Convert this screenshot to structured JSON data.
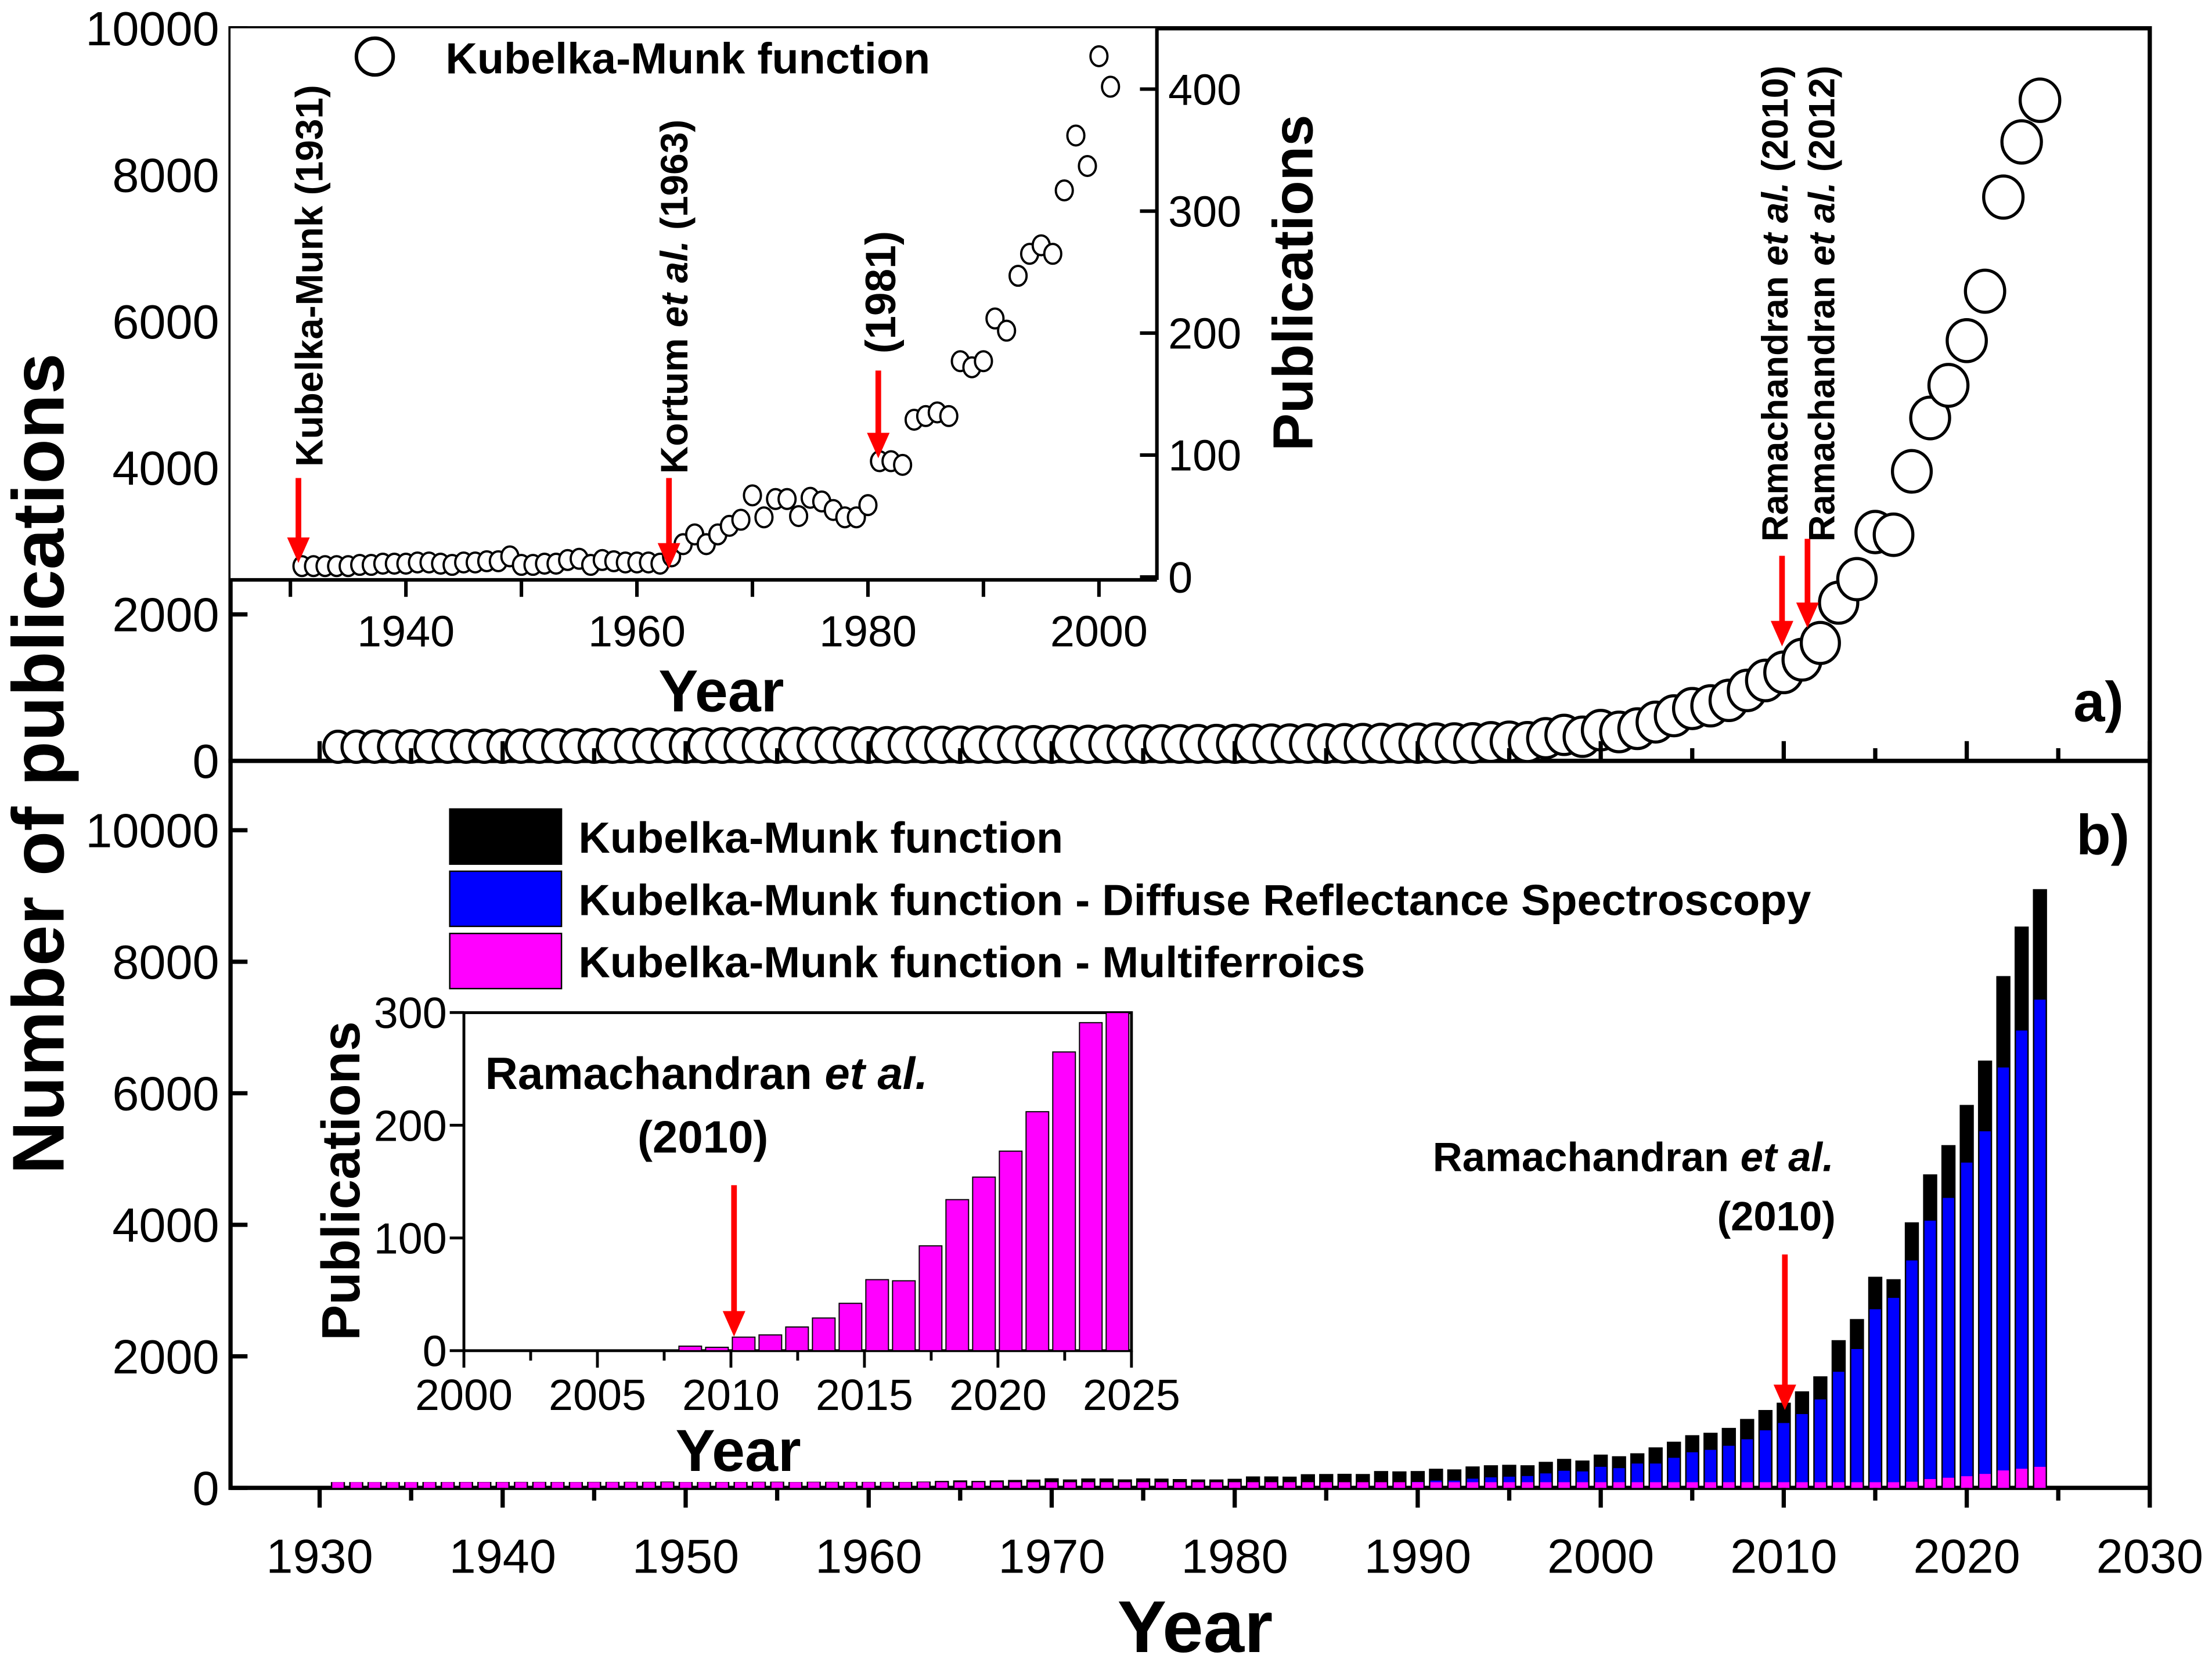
{
  "chart_data": [
    {
      "panel": "a)",
      "type": "scatter",
      "xlabel": "",
      "ylabel": "Number of publications",
      "xlim": [
        1925,
        2030
      ],
      "ylim": [
        0,
        10000
      ],
      "yticks": [
        "0",
        "2000",
        "4000",
        "6000",
        "8000",
        "10000"
      ],
      "legend": [
        "Kubelka-Munk function"
      ],
      "legend_placement": "top-left",
      "marker": "open-circle",
      "x_start": 1931,
      "series": [
        {
          "name": "Kubelka-Munk function",
          "years": [
            1931,
            1932,
            1933,
            1934,
            1935,
            1936,
            1937,
            1938,
            1939,
            1940,
            1941,
            1942,
            1943,
            1944,
            1945,
            1946,
            1947,
            1948,
            1949,
            1950,
            1951,
            1952,
            1953,
            1954,
            1955,
            1956,
            1957,
            1958,
            1959,
            1960,
            1961,
            1962,
            1963,
            1964,
            1965,
            1966,
            1967,
            1968,
            1969,
            1970,
            1971,
            1972,
            1973,
            1974,
            1975,
            1976,
            1977,
            1978,
            1979,
            1980,
            1981,
            1982,
            1983,
            1984,
            1985,
            1986,
            1987,
            1988,
            1989,
            1990,
            1991,
            1992,
            1993,
            1994,
            1995,
            1996,
            1997,
            1998,
            1999,
            2000,
            2001,
            2002,
            2003,
            2004,
            2005,
            2006,
            2007,
            2008,
            2009,
            2010,
            2011,
            2012,
            2013,
            2014,
            2015,
            2016,
            2017,
            2018,
            2019,
            2020,
            2021,
            2022,
            2023,
            2024
          ],
          "values": [
            2,
            2,
            2,
            2,
            2,
            3,
            3,
            4,
            4,
            4,
            5,
            5,
            4,
            3,
            5,
            5,
            6,
            6,
            10,
            3,
            3,
            4,
            4,
            7,
            8,
            3,
            7,
            6,
            5,
            5,
            5,
            4,
            10,
            20,
            28,
            20,
            28,
            35,
            40,
            60,
            42,
            57,
            57,
            43,
            58,
            55,
            48,
            42,
            42,
            52,
            88,
            88,
            85,
            122,
            125,
            128,
            125,
            170,
            165,
            170,
            205,
            195,
            240,
            258,
            265,
            258,
            310,
            355,
            330,
            420,
            395,
            440,
            530,
            616,
            715,
            752,
            826,
            962,
            1098,
            1209,
            1382,
            1610,
            2160,
            2481,
            3124,
            3087,
            3952,
            4681,
            5126,
            5737,
            6411,
            7696,
            8449,
            9018
          ]
        }
      ],
      "annotations": [
        {
          "text": "Kubelka-Munk (1931)",
          "year": 1931
        },
        {
          "text_pre": "Ramachandran ",
          "text_it": "et al.",
          "text_post": " (2010)",
          "year": 2010
        },
        {
          "text_pre": "Ramachandran ",
          "text_it": "et al.",
          "text_post": " (2012)",
          "year": 2012
        }
      ],
      "inset": {
        "type": "scatter",
        "xlabel": "Year",
        "ylabel": "Publications",
        "xlim": [
          1925,
          2005
        ],
        "ylim": [
          0,
          450
        ],
        "xticks": [
          "1940",
          "1960",
          "1980",
          "2000"
        ],
        "yticks": [
          "0",
          "100",
          "200",
          "300",
          "400"
        ],
        "year_range": [
          1931,
          2001
        ],
        "annotations": [
          {
            "text": "Kubelka-Munk (1931)",
            "year": 1931
          },
          {
            "text_pre": "Kortum ",
            "text_it": "et al.",
            "text_post": " (1963)",
            "year": 1963
          },
          {
            "text": "(1981)",
            "year": 1981
          }
        ]
      }
    },
    {
      "panel": "b)",
      "type": "bar",
      "xlabel": "Year",
      "ylabel": "Number of publications",
      "xlim": [
        1925,
        2030
      ],
      "ylim": [
        0,
        10000
      ],
      "xticks": [
        "1930",
        "1940",
        "1950",
        "1960",
        "1970",
        "1980",
        "1990",
        "2000",
        "2010",
        "2020",
        "2030"
      ],
      "yticks": [
        "0",
        "2000",
        "4000",
        "6000",
        "8000",
        "10000"
      ],
      "legend_placement": "top-left",
      "series": [
        {
          "name": "Kubelka-Munk function",
          "color": "#000000",
          "from_year": 1931,
          "values": "same as panel a)"
        },
        {
          "name": "Kubelka-Munk function - Diffuse Reflectance Spectroscopy",
          "color": "#0000ff",
          "from_year": 1985,
          "values": [
            40,
            45,
            50,
            70,
            80,
            90,
            110,
            110,
            140,
            160,
            170,
            180,
            220,
            260,
            250,
            320,
            300,
            370,
            370,
            457,
            541,
            578,
            640,
            739,
            875,
            986,
            1122,
            1345,
            1765,
            2111,
            2716,
            2889,
            3458,
            4063,
            4409,
            4946,
            5422,
            6392,
            6954,
            7424
          ]
        },
        {
          "name": "Kubelka-Munk function - Multiferroics",
          "color": "#ff00ff",
          "from_year": 2008,
          "values": [
            4,
            3,
            12,
            14,
            21,
            29,
            42,
            63,
            62,
            93,
            134,
            154,
            177,
            212,
            265,
            291,
            320
          ]
        }
      ],
      "annotations": [
        {
          "text_pre": "Ramachandran ",
          "text_it": "et al.",
          "line2": "(2010)",
          "year": 2010
        }
      ],
      "inset": {
        "type": "bar",
        "series": "Kubelka-Munk function - Multiferroics",
        "xlabel": "Year",
        "ylabel": "Publications",
        "xlim": [
          2000,
          2025
        ],
        "ylim": [
          0,
          300
        ],
        "xticks": [
          "2000",
          "2005",
          "2010",
          "2015",
          "2020",
          "2025"
        ],
        "yticks": [
          "0",
          "100",
          "200",
          "300"
        ],
        "annotations": [
          {
            "text_pre": "Ramachandran ",
            "text_it": "et al.",
            "line2": "(2010)",
            "year": 2010
          }
        ]
      }
    }
  ],
  "labels": {
    "ylabel": "Number of publications",
    "xlabel": "Year",
    "panel_a": "a)",
    "panel_b": "b)",
    "legend_a": "Kubelka-Munk function",
    "legend_b": [
      "Kubelka-Munk function",
      "Kubelka-Munk function - Diffuse Reflectance Spectroscopy",
      "Kubelka-Munk function - Multiferroics"
    ],
    "inset_a_xlabel": "Year",
    "inset_a_ylabel": "Publications",
    "inset_b_xlabel": "Year",
    "inset_b_ylabel": "Publications",
    "km1931": "Kubelka-Munk (1931)",
    "kortum_pre": "Kortum ",
    "et_al": "et al.",
    "y1963": " (1963)",
    "y1981": "(1981)",
    "rama": "Ramachandran ",
    "y2010": " (2010)",
    "y2012": " (2012)",
    "rama_b": "Ramachandran ",
    "y2010_b": "(2010)"
  },
  "colors": {
    "arrow": "#ff0000",
    "black": "#000000",
    "blue": "#0000ff",
    "magenta": "#ff00ff"
  }
}
